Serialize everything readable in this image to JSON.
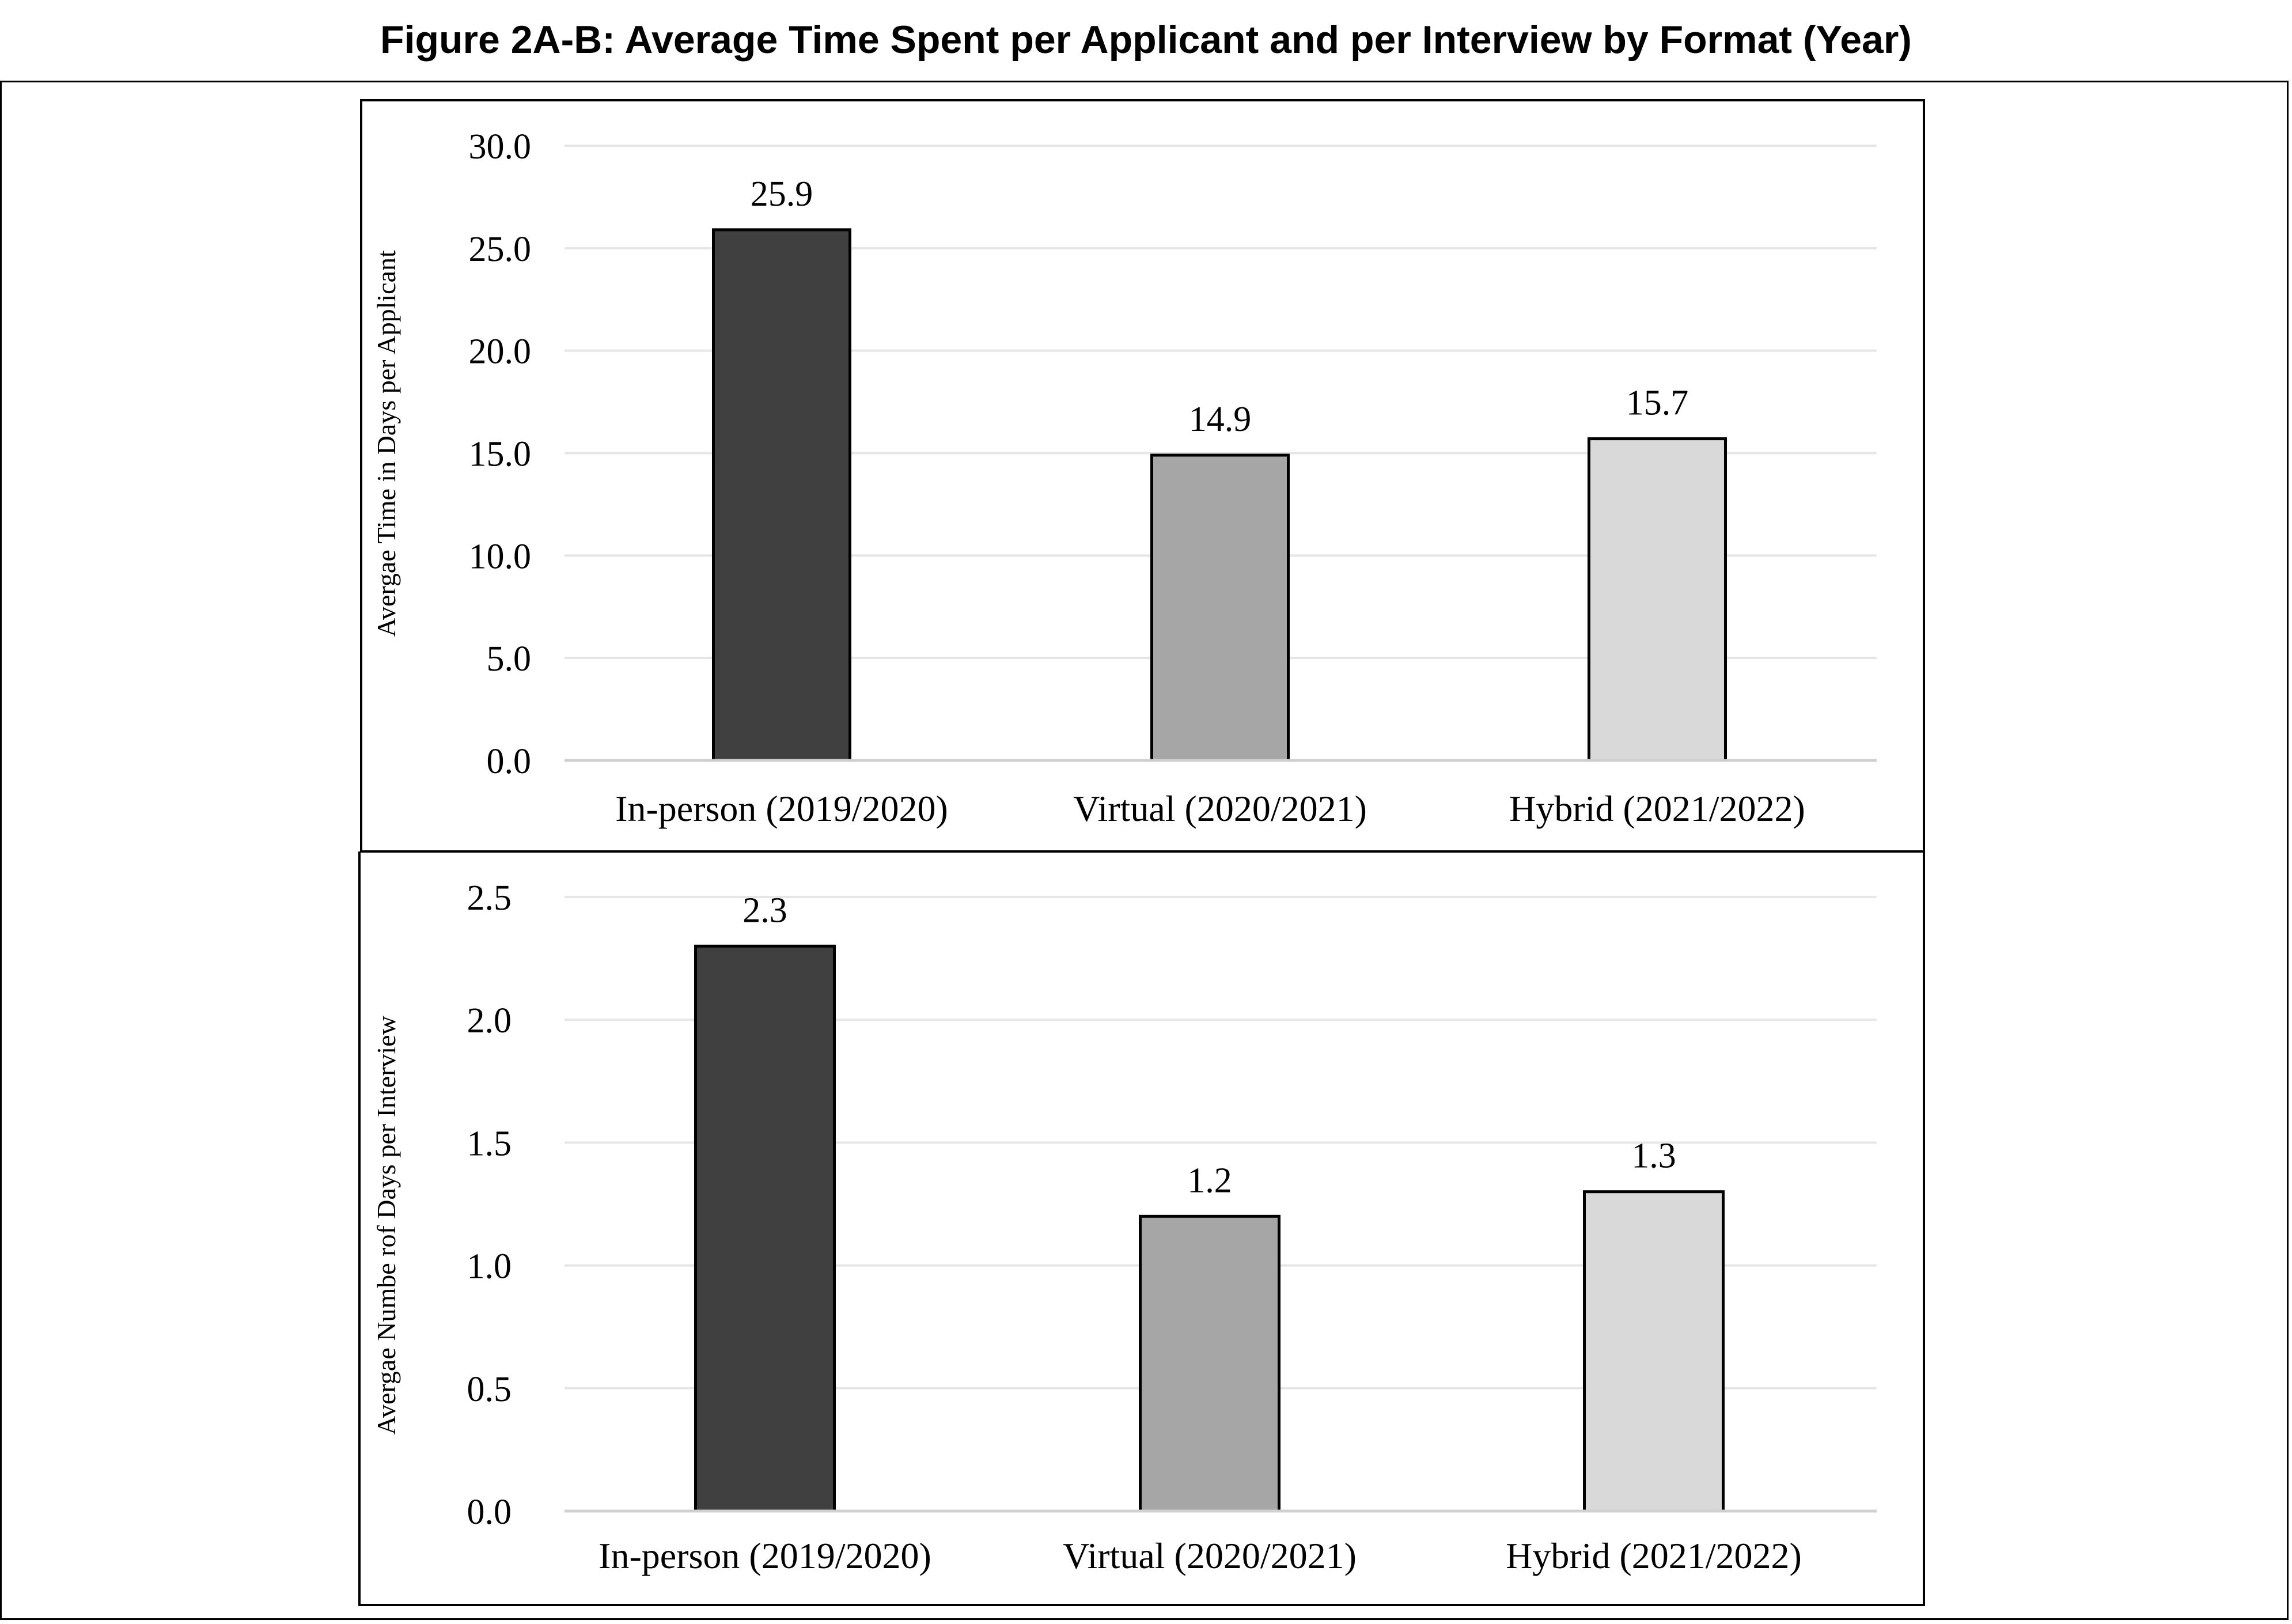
{
  "figure_title": "Figure 2A-B: Average Time Spent per Applicant and per Interview by Format (Year)",
  "colors": {
    "bar_dark": "#404040",
    "bar_mid": "#a6a6a6",
    "bar_light": "#d9d9d9",
    "grid": "#e6e6e6",
    "axis": "#d0d0d0"
  },
  "chart_data": [
    {
      "type": "bar",
      "categories": [
        "In-person (2019/2020)",
        "Virtual (2020/2021)",
        "Hybrid (2021/2022)"
      ],
      "values": [
        25.9,
        14.9,
        15.7
      ],
      "data_labels": [
        "25.9",
        "14.9",
        "15.7"
      ],
      "ylabel": "Avergae Time in Days per Applicant",
      "xlabel": "",
      "ylim": [
        0,
        30
      ],
      "yticks": [
        "0.0",
        "5.0",
        "10.0",
        "15.0",
        "20.0",
        "25.0",
        "30.0"
      ],
      "grid": true,
      "legend": "none"
    },
    {
      "type": "bar",
      "categories": [
        "In-person (2019/2020)",
        "Virtual (2020/2021)",
        "Hybrid (2021/2022)"
      ],
      "values": [
        2.3,
        1.2,
        1.3
      ],
      "data_labels": [
        "2.3",
        "1.2",
        "1.3"
      ],
      "ylabel": "Avergae Numbe rof Days per Interview",
      "xlabel": "",
      "ylim": [
        0,
        2.5
      ],
      "yticks": [
        "0.0",
        "0.5",
        "1.0",
        "1.5",
        "2.0",
        "2.5"
      ],
      "grid": true,
      "legend": "none"
    }
  ]
}
